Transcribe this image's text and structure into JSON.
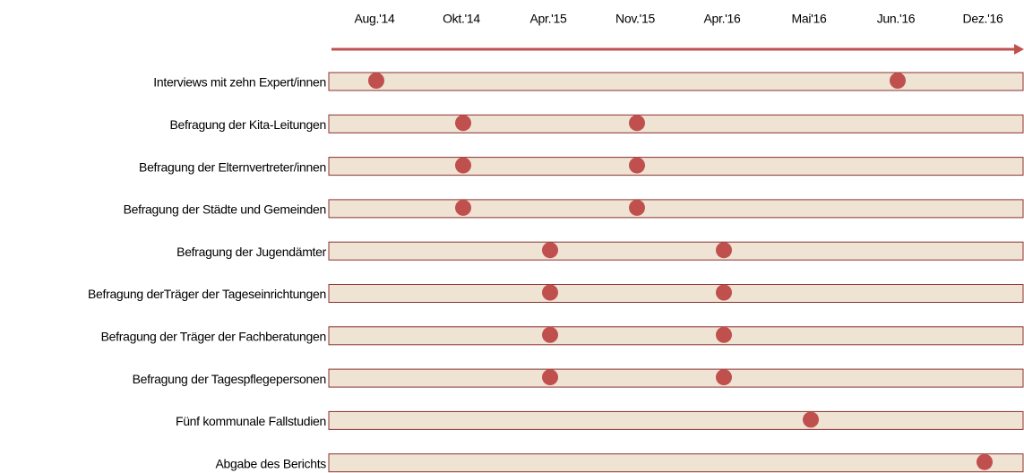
{
  "chart_data": {
    "type": "timeline",
    "categories": [
      "Aug.'14",
      "Okt.'14",
      "Apr.'15",
      "Nov.'15",
      "Apr.'16",
      "Mai'16",
      "Jun.'16",
      "Dez.'16"
    ],
    "color": "#c0504d",
    "tasks": [
      {
        "name": "Interviews mit zehn Expert/innen",
        "points": [
          0,
          6
        ]
      },
      {
        "name": "Befragung der Kita-Leitungen",
        "points": [
          1,
          3
        ]
      },
      {
        "name": "Befragung der Elternvertreter/innen",
        "points": [
          1,
          3
        ]
      },
      {
        "name": "Befragung der Städte und Gemeinden",
        "points": [
          1,
          3
        ]
      },
      {
        "name": "Befragung der Jugendämter",
        "points": [
          2,
          4
        ]
      },
      {
        "name": "Befragung derTräger der Tageseinrichtungen",
        "points": [
          2,
          4
        ]
      },
      {
        "name": "Befragung der Träger der Fachberatungen",
        "points": [
          2,
          4
        ]
      },
      {
        "name": "Befragung der Tagespflegepersonen",
        "points": [
          2,
          4
        ]
      },
      {
        "name": "Fünf kommunale Fallstudien",
        "points": [
          5
        ]
      },
      {
        "name": "Abgabe des Berichts",
        "points": [
          7
        ]
      }
    ]
  }
}
